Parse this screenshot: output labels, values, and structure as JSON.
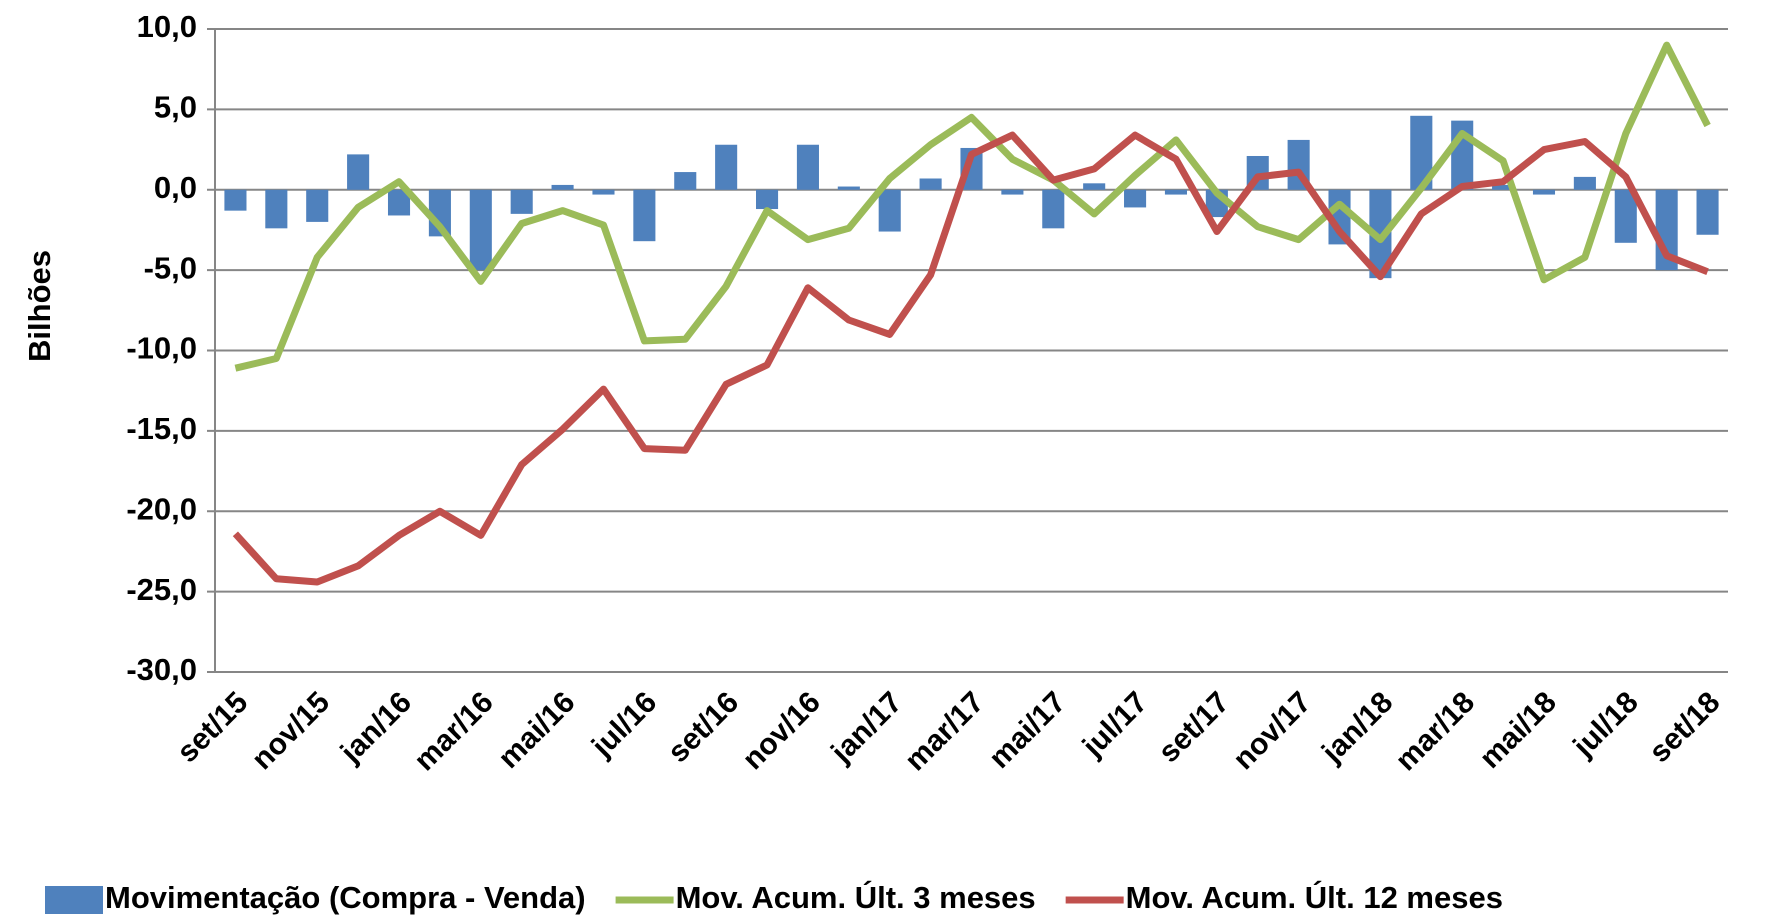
{
  "chart_data": {
    "type": "combo",
    "y_label": "Bilhões",
    "categories": [
      "set/15",
      null,
      "nov/15",
      null,
      "jan/16",
      null,
      "mar/16",
      null,
      "mai/16",
      null,
      "jul/16",
      null,
      "set/16",
      null,
      "nov/16",
      null,
      "jan/17",
      null,
      "mar/17",
      null,
      "mai/17",
      null,
      "jul/17",
      null,
      "set/17",
      null,
      "nov/17",
      null,
      "jan/18",
      null,
      "mar/18",
      null,
      "mai/18",
      null,
      "jul/18",
      null,
      "set/18"
    ],
    "ylim": [
      -30,
      10
    ],
    "yticks": [
      {
        "value": -30,
        "label": "-30,0"
      },
      {
        "value": -25,
        "label": "-25,0"
      },
      {
        "value": -20,
        "label": "-20,0"
      },
      {
        "value": -15,
        "label": "-15,0"
      },
      {
        "value": -10,
        "label": "-10,0"
      },
      {
        "value": -5,
        "label": "-5,0"
      },
      {
        "value": 0,
        "label": "0,0"
      },
      {
        "value": 5,
        "label": "5,0"
      },
      {
        "value": 10,
        "label": "10,0"
      }
    ],
    "grid": true,
    "legend": "bottom",
    "series": [
      {
        "name": "Movimentação (Compra - Venda)",
        "type": "bar",
        "color": "#4f81bd",
        "values": [
          -1.3,
          -2.4,
          -2.0,
          2.2,
          -1.6,
          -2.9,
          -5.0,
          -1.5,
          0.3,
          -0.3,
          -3.2,
          1.1,
          2.8,
          -1.2,
          2.8,
          0.2,
          -2.6,
          0.7,
          2.6,
          -0.3,
          -2.4,
          0.4,
          -1.1,
          -0.3,
          -1.7,
          2.1,
          3.1,
          -3.4,
          -5.5,
          4.6,
          4.3,
          0.3,
          -0.3,
          0.8,
          -3.3,
          -5.0,
          -2.8
        ]
      },
      {
        "name": "Mov. Acum. Últ. 3 meses",
        "type": "line",
        "color": "#9bbb59",
        "values": [
          -11.1,
          -10.5,
          -4.2,
          -1.1,
          0.5,
          -2.3,
          -5.7,
          -2.1,
          -1.3,
          -2.2,
          -9.4,
          -9.3,
          -6.0,
          -1.3,
          -3.1,
          -2.4,
          0.7,
          2.8,
          4.5,
          1.9,
          0.6,
          -1.5,
          0.9,
          3.1,
          -0.2,
          -2.3,
          -3.1,
          -0.9,
          -3.1,
          0.1,
          3.5,
          1.8,
          -5.6,
          -4.2,
          3.5,
          9.0,
          4.0
        ]
      },
      {
        "name": "Mov. Acum. Últ. 12 meses",
        "type": "line",
        "color": "#c0504d",
        "values": [
          -21.4,
          -24.2,
          -24.4,
          -23.4,
          -21.5,
          -20.0,
          -21.5,
          -17.1,
          -14.9,
          -12.4,
          -16.1,
          -16.2,
          -12.1,
          -10.9,
          -6.1,
          -8.1,
          -9.0,
          -5.3,
          2.2,
          3.4,
          0.6,
          1.3,
          3.4,
          1.9,
          -2.6,
          0.8,
          1.1,
          -2.6,
          -5.4,
          -1.5,
          0.2,
          0.5,
          2.5,
          3.0,
          0.8,
          -4.1,
          -5.1
        ]
      }
    ]
  }
}
